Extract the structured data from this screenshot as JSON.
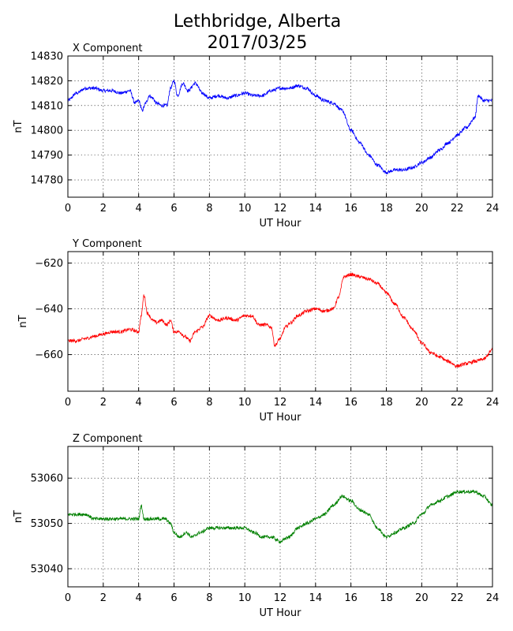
{
  "title_line1": "Lethbridge, Alberta",
  "title_line2": "2017/03/25",
  "chart_data": [
    {
      "type": "line",
      "title": "X Component",
      "xlabel": "UT Hour",
      "ylabel": "nT",
      "xlim": [
        0,
        24
      ],
      "ylim": [
        14773,
        14830
      ],
      "xticks": [
        0,
        2,
        4,
        6,
        8,
        10,
        12,
        14,
        16,
        18,
        20,
        22,
        24
      ],
      "yticks": [
        14780,
        14790,
        14800,
        14810,
        14820,
        14830
      ],
      "grid": true,
      "color": "#0000ff",
      "series": [
        {
          "x": [
            0,
            0.5,
            1,
            1.5,
            2,
            2.5,
            3,
            3.5,
            3.8,
            4,
            4.2,
            4.4,
            4.6,
            4.8,
            5,
            5.3,
            5.6,
            5.8,
            6,
            6.2,
            6.5,
            6.8,
            7.2,
            7.6,
            8,
            8.5,
            9,
            9.5,
            10,
            10.5,
            11,
            11.5,
            12,
            12.5,
            13,
            13.5,
            14,
            14.5,
            15,
            15.5,
            16,
            16.5,
            17,
            17.5,
            18,
            18.5,
            19,
            19.5,
            20,
            20.5,
            21,
            21.5,
            22,
            22.5,
            23,
            23.2,
            23.5,
            24
          ],
          "y": [
            14812,
            14815,
            14817,
            14817,
            14816,
            14816,
            14815,
            14816,
            14811,
            14812,
            14808,
            14811,
            14814,
            14813,
            14811,
            14810,
            14810,
            14817,
            14820,
            14814,
            14819,
            14816,
            14819,
            14815,
            14813,
            14814,
            14813,
            14814,
            14815,
            14814,
            14814,
            14816,
            14817,
            14817,
            14818,
            14817,
            14814,
            14812,
            14811,
            14808,
            14800,
            14795,
            14790,
            14786,
            14783,
            14784,
            14784,
            14785,
            14787,
            14789,
            14792,
            14795,
            14798,
            14801,
            14805,
            14814,
            14812,
            14812
          ]
        }
      ]
    },
    {
      "type": "line",
      "title": "Y Component",
      "xlabel": "UT Hour",
      "ylabel": "nT",
      "xlim": [
        0,
        24
      ],
      "ylim": [
        -676,
        -615
      ],
      "xticks": [
        0,
        2,
        4,
        6,
        8,
        10,
        12,
        14,
        16,
        18,
        20,
        22,
        24
      ],
      "yticks": [
        -660,
        -640,
        -620
      ],
      "grid": true,
      "color": "#ff0000",
      "series": [
        {
          "x": [
            0,
            0.5,
            1,
            1.5,
            2,
            2.5,
            3,
            3.5,
            4,
            4.15,
            4.3,
            4.5,
            4.8,
            5,
            5.3,
            5.6,
            5.8,
            6,
            6.3,
            6.6,
            6.9,
            7.2,
            7.6,
            8,
            8.5,
            9,
            9.5,
            10,
            10.4,
            10.8,
            11.2,
            11.5,
            11.7,
            12,
            12.3,
            12.6,
            13,
            13.5,
            14,
            14.5,
            15,
            15.3,
            15.6,
            16,
            16.5,
            17,
            17.5,
            18,
            18.5,
            19,
            19.5,
            20,
            20.5,
            21,
            21.5,
            22,
            22.5,
            23,
            23.5,
            24
          ],
          "y": [
            -654,
            -654,
            -653,
            -652,
            -651,
            -650,
            -650,
            -649,
            -650,
            -643,
            -634,
            -642,
            -645,
            -646,
            -645,
            -647,
            -645,
            -650,
            -650,
            -652,
            -654,
            -650,
            -648,
            -643,
            -645,
            -644,
            -645,
            -643,
            -643,
            -647,
            -647,
            -648,
            -656,
            -653,
            -648,
            -646,
            -643,
            -641,
            -640,
            -641,
            -640,
            -635,
            -626,
            -625,
            -626,
            -627,
            -629,
            -633,
            -638,
            -644,
            -649,
            -655,
            -659,
            -661,
            -663,
            -665,
            -664,
            -663,
            -662,
            -658
          ]
        }
      ]
    },
    {
      "type": "line",
      "title": "Z Component",
      "xlabel": "UT Hour",
      "ylabel": "nT",
      "xlim": [
        0,
        24
      ],
      "ylim": [
        53036,
        53067
      ],
      "xticks": [
        0,
        2,
        4,
        6,
        8,
        10,
        12,
        14,
        16,
        18,
        20,
        22,
        24
      ],
      "yticks": [
        53040,
        53050,
        53060
      ],
      "grid": true,
      "color": "#008000",
      "series": [
        {
          "x": [
            0,
            0.5,
            1,
            1.5,
            2,
            2.5,
            3,
            3.5,
            4,
            4.15,
            4.3,
            4.5,
            5,
            5.5,
            5.8,
            6,
            6.3,
            6.7,
            7,
            7.5,
            8,
            8.5,
            9,
            9.5,
            10,
            10.5,
            11,
            11.5,
            12,
            12.5,
            13,
            13.5,
            14,
            14.5,
            15,
            15.5,
            16,
            16.5,
            17,
            17.5,
            18,
            18.5,
            19,
            19.5,
            20,
            20.5,
            21,
            21.5,
            22,
            22.5,
            23,
            23.5,
            24
          ],
          "y": [
            53052,
            53052,
            53052,
            53051,
            53051,
            53051,
            53051,
            53051,
            53051,
            53054,
            53051,
            53051,
            53051,
            53051,
            53050,
            53048,
            53047,
            53048,
            53047,
            53048,
            53049,
            53049,
            53049,
            53049,
            53049,
            53048,
            53047,
            53047,
            53046,
            53047,
            53049,
            53050,
            53051,
            53052,
            53054,
            53056,
            53055,
            53053,
            53052,
            53049,
            53047,
            53048,
            53049,
            53050,
            53052,
            53054,
            53055,
            53056,
            53057,
            53057,
            53057,
            53056,
            53054
          ]
        }
      ]
    }
  ]
}
